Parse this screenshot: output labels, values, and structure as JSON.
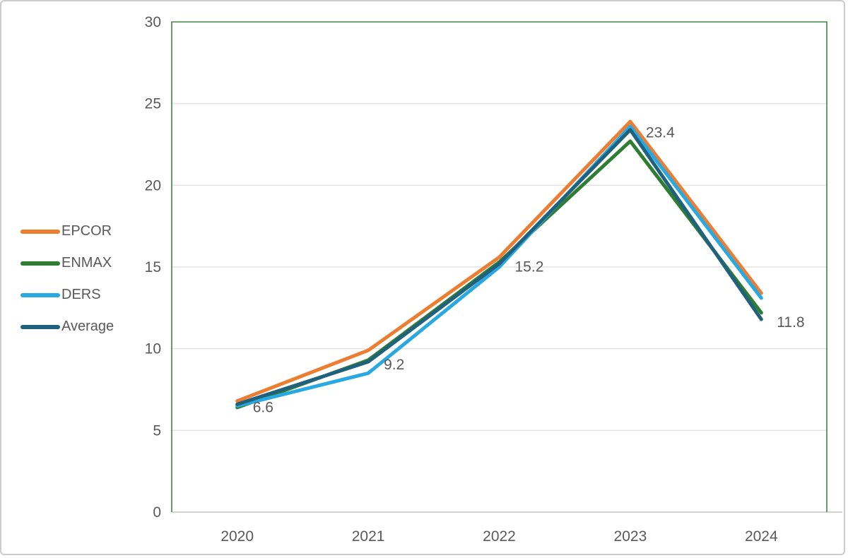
{
  "chart_data": {
    "type": "line",
    "title": "",
    "categories": [
      "2020",
      "2021",
      "2022",
      "2023",
      "2024"
    ],
    "series": [
      {
        "name": "EPCOR",
        "color": "#ED7D31",
        "values": [
          6.8,
          9.9,
          15.6,
          23.9,
          13.4
        ]
      },
      {
        "name": "ENMAX",
        "color": "#2E7D32",
        "values": [
          6.4,
          9.3,
          15.3,
          22.7,
          12.2
        ]
      },
      {
        "name": "DERS",
        "color": "#29A9E1",
        "values": [
          6.5,
          8.5,
          15.0,
          23.6,
          13.1
        ]
      },
      {
        "name": "Average",
        "color": "#20617D",
        "values": [
          6.6,
          9.2,
          15.2,
          23.4,
          11.8
        ]
      }
    ],
    "data_labels": {
      "series": "Average",
      "values": [
        "6.6",
        "9.2",
        "15.2",
        "23.4",
        "11.8"
      ]
    },
    "ylim": [
      0,
      30
    ],
    "y_ticks": [
      "0",
      "5",
      "10",
      "15",
      "20",
      "25",
      "30"
    ],
    "grid": "horizontal",
    "legend_position": "left"
  },
  "colors": {
    "background": "#FFFFFF",
    "outer_border": "#CCCCCC",
    "plot_border": "#3E8549",
    "gridline": "#E3E3E3",
    "axis_line": "#D2D2D2",
    "text": "#595959"
  }
}
